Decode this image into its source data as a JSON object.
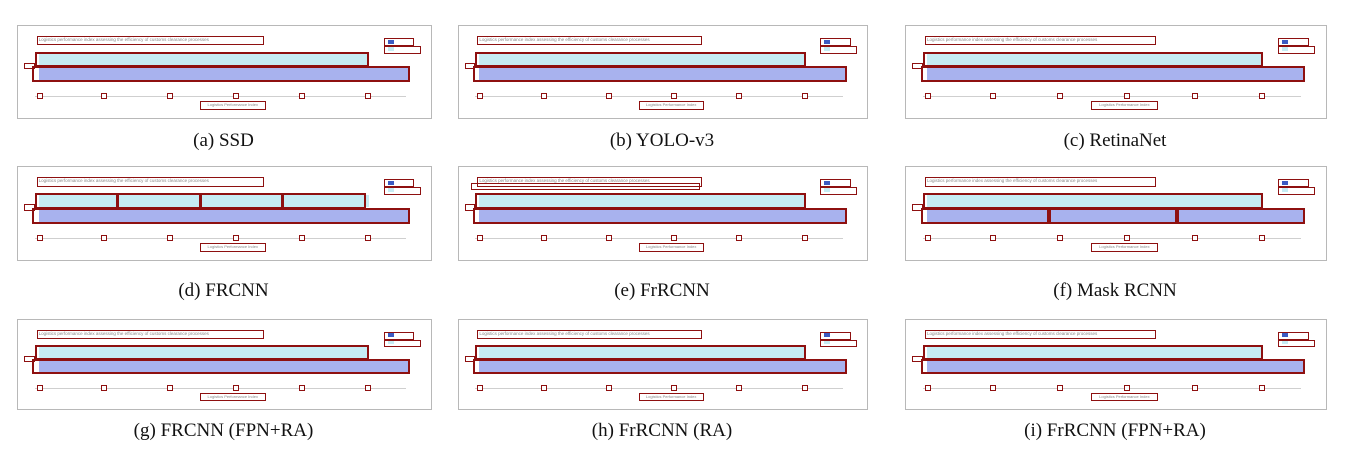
{
  "chart_title": "Logistics performance index assessing the efficiency of customs clearance processes",
  "xlabel": "Logistics Performance Index",
  "panels": [
    {
      "caption": "(a) SSD"
    },
    {
      "caption": "(b) YOLO-v3"
    },
    {
      "caption": "(c) RetinaNet"
    },
    {
      "caption": "(d) FRCNN"
    },
    {
      "caption": "(e) FrRCNN"
    },
    {
      "caption": "(f) Mask RCNN"
    },
    {
      "caption": "(g) FRCNN (FPN+RA)"
    },
    {
      "caption": "(h) FrRCNN (RA)"
    },
    {
      "caption": "(i) FrRCNN (FPN+RA)"
    }
  ],
  "colors": {
    "detection_box": "#8e1010",
    "bar_light": "#c6ecf4",
    "bar_dark": "#a8b2ee",
    "legend_dark": "#3b5ac2"
  }
}
